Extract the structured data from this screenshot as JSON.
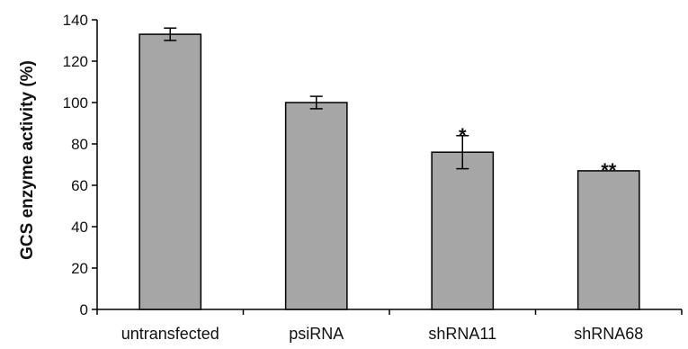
{
  "chart_data": {
    "type": "bar",
    "title": "",
    "xlabel": "",
    "ylabel": "GCS enzyme activity (%)",
    "ylim": [
      0,
      140
    ],
    "yticks": [
      0,
      20,
      40,
      60,
      80,
      100,
      120,
      140
    ],
    "categories": [
      "untransfected",
      "psiRNA",
      "shRNA11",
      "shRNA68"
    ],
    "values": [
      133,
      100,
      76,
      67
    ],
    "errors": [
      3,
      3,
      8,
      0
    ],
    "annotations": [
      "",
      "",
      "*",
      "**"
    ],
    "grid": false,
    "legend": "none",
    "bar_color": "#a6a6a6",
    "edge_color": "#000000"
  }
}
